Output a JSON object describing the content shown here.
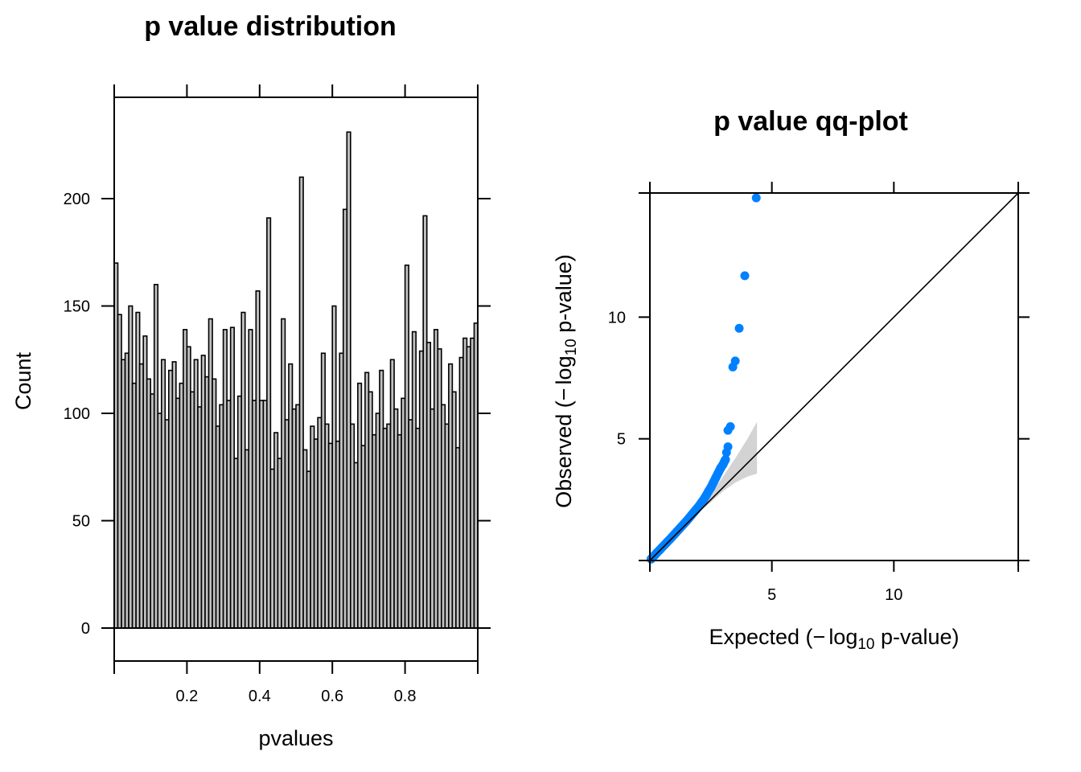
{
  "chart_data": [
    {
      "type": "bar",
      "subtype": "histogram",
      "title": "p value distribution",
      "xlabel": "pvalues",
      "ylabel": "Count",
      "xlim": [
        0,
        1
      ],
      "ylim": [
        -15,
        246
      ],
      "bin_width": 0.01,
      "bar_color": "#c0c0c0",
      "bar_edge_color": "#000000",
      "x_ticks": [
        0.2,
        0.4,
        0.6,
        0.8
      ],
      "x_tick_labels": [
        "0.2",
        "0.4",
        "0.6",
        "0.8"
      ],
      "y_ticks": [
        0,
        50,
        100,
        150,
        200
      ],
      "y_tick_labels": [
        "0",
        "50",
        "100",
        "150",
        "200"
      ],
      "grid": false,
      "values": [
        170,
        146,
        125,
        128,
        150,
        114,
        147,
        123,
        136,
        116,
        109,
        160,
        100,
        125,
        97,
        120,
        124,
        107,
        114,
        139,
        131,
        110,
        125,
        103,
        127,
        117,
        144,
        116,
        94,
        104,
        139,
        106,
        140,
        79,
        108,
        147,
        83,
        139,
        106,
        157,
        106,
        106,
        191,
        74,
        91,
        79,
        144,
        97,
        123,
        102,
        104,
        210,
        83,
        73,
        94,
        88,
        98,
        128,
        95,
        86,
        150,
        87,
        128,
        195,
        231,
        95,
        77,
        114,
        85,
        119,
        110,
        90,
        100,
        120,
        93,
        95,
        125,
        102,
        90,
        107,
        169,
        97,
        138,
        93,
        129,
        192,
        133,
        102,
        139,
        130,
        104,
        95,
        123,
        110,
        84,
        126,
        135,
        131,
        135,
        142
      ]
    },
    {
      "type": "scatter",
      "subtype": "qq-plot",
      "title": "p value qq-plot",
      "xlabel_main": "Expected (",
      "xlabel_minus": "−",
      "xlabel_log": "log",
      "xlabel_sub": "10",
      "xlabel_rest": " p-value)",
      "ylabel_main": "Observed (",
      "ylabel_minus": "−",
      "ylabel_log": "log",
      "ylabel_sub": "10",
      "ylabel_rest": " p-value)",
      "xlim": [
        0,
        15.1
      ],
      "ylim": [
        0,
        15.1
      ],
      "x_ticks": [
        5,
        10
      ],
      "x_tick_labels": [
        "5",
        "10"
      ],
      "y_ticks": [
        5,
        10
      ],
      "y_tick_labels": [
        "5",
        "10"
      ],
      "grid": false,
      "point_color": "#0080ff",
      "band_color": "#d3d3d3",
      "reference_line": {
        "from": [
          0,
          0
        ],
        "to": [
          15.1,
          15.1
        ],
        "color": "#000000"
      },
      "confidence_band": {
        "x": [
          0,
          1.0,
          2.0,
          2.5,
          3.0,
          3.5,
          4.0,
          4.39
        ],
        "upper": [
          0,
          1.0,
          2.05,
          2.7,
          3.45,
          4.2,
          5.0,
          5.7
        ],
        "lower": [
          0,
          1.0,
          1.98,
          2.4,
          2.85,
          3.2,
          3.45,
          3.57
        ]
      },
      "points": [
        [
          0.05,
          0.06
        ],
        [
          0.1,
          0.12
        ],
        [
          0.2,
          0.22
        ],
        [
          0.3,
          0.33
        ],
        [
          0.4,
          0.43
        ],
        [
          0.5,
          0.54
        ],
        [
          0.6,
          0.64
        ],
        [
          0.7,
          0.75
        ],
        [
          0.8,
          0.85
        ],
        [
          0.9,
          0.96
        ],
        [
          1.0,
          1.07
        ],
        [
          1.1,
          1.18
        ],
        [
          1.2,
          1.29
        ],
        [
          1.3,
          1.4
        ],
        [
          1.4,
          1.51
        ],
        [
          1.5,
          1.62
        ],
        [
          1.6,
          1.74
        ],
        [
          1.7,
          1.86
        ],
        [
          1.8,
          1.98
        ],
        [
          1.9,
          2.1
        ],
        [
          2.0,
          2.22
        ],
        [
          2.1,
          2.36
        ],
        [
          2.2,
          2.5
        ],
        [
          2.3,
          2.66
        ],
        [
          2.4,
          2.84
        ],
        [
          2.5,
          3.0
        ],
        [
          2.6,
          3.2
        ],
        [
          2.7,
          3.4
        ],
        [
          2.8,
          3.6
        ],
        [
          2.9,
          3.8
        ],
        [
          3.0,
          3.95
        ],
        [
          3.07,
          4.1
        ],
        [
          3.1,
          4.15
        ],
        [
          3.14,
          4.44
        ],
        [
          3.2,
          4.67
        ],
        [
          3.2,
          5.35
        ],
        [
          3.3,
          5.5
        ],
        [
          3.4,
          7.95
        ],
        [
          3.5,
          8.2
        ],
        [
          3.66,
          9.54
        ],
        [
          3.89,
          11.7
        ],
        [
          4.36,
          14.9
        ]
      ]
    }
  ]
}
